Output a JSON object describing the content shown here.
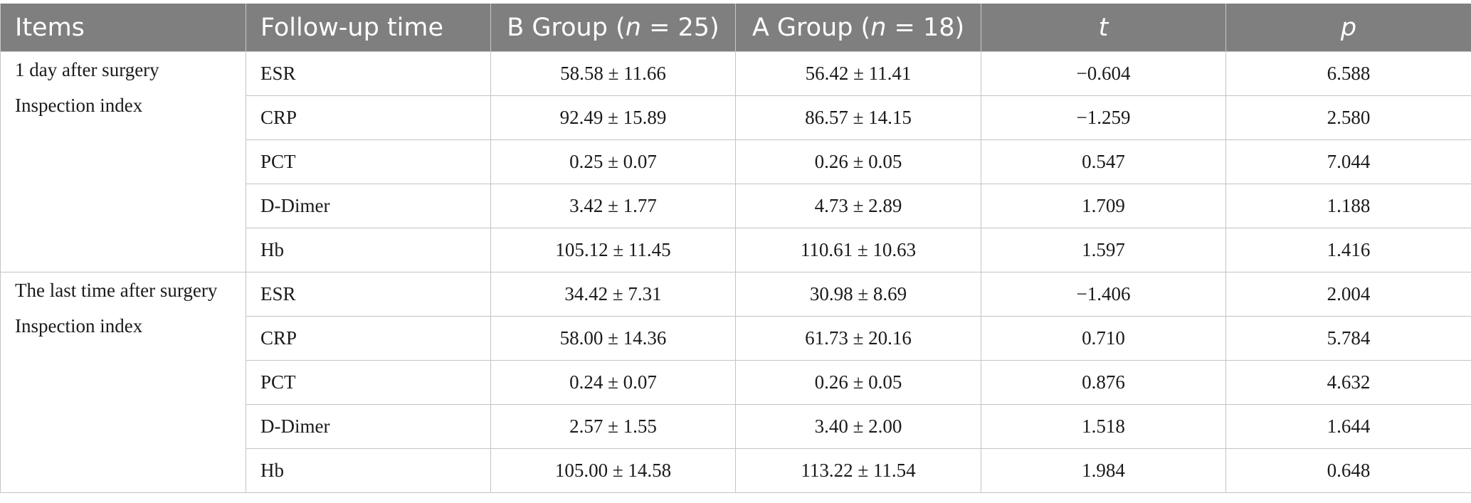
{
  "table": {
    "headers": {
      "items": "Items",
      "followup": "Follow-up time",
      "group_b_prefix": "B Group (",
      "group_b_n": "n",
      "group_b_suffix": " = 25)",
      "group_a_prefix": "A Group (",
      "group_a_n": "n",
      "group_a_suffix": " = 18)",
      "t": "t",
      "p": "p"
    },
    "sections": [
      {
        "label_line1": "1 day after surgery",
        "label_line2": "Inspection index",
        "rows": [
          {
            "name": "ESR",
            "b": "58.58 ± 11.66",
            "a": "56.42 ± 11.41",
            "t": "−0.604",
            "p": "6.588"
          },
          {
            "name": "CRP",
            "b": "92.49 ± 15.89",
            "a": "86.57 ± 14.15",
            "t": "−1.259",
            "p": "2.580"
          },
          {
            "name": "PCT",
            "b": "0.25 ± 0.07",
            "a": "0.26 ± 0.05",
            "t": "0.547",
            "p": "7.044"
          },
          {
            "name": "D-Dimer",
            "b": "3.42 ± 1.77",
            "a": "4.73 ± 2.89",
            "t": "1.709",
            "p": "1.188"
          },
          {
            "name": "Hb",
            "b": "105.12 ± 11.45",
            "a": "110.61 ± 10.63",
            "t": "1.597",
            "p": "1.416"
          }
        ]
      },
      {
        "label_line1": "The last time after surgery",
        "label_line2": "Inspection index",
        "rows": [
          {
            "name": "ESR",
            "b": "34.42 ± 7.31",
            "a": "30.98 ± 8.69",
            "t": "−1.406",
            "p": "2.004"
          },
          {
            "name": "CRP",
            "b": "58.00 ± 14.36",
            "a": "61.73 ± 20.16",
            "t": "0.710",
            "p": "5.784"
          },
          {
            "name": "PCT",
            "b": "0.24 ± 0.07",
            "a": "0.26 ± 0.05",
            "t": "0.876",
            "p": "4.632"
          },
          {
            "name": "D-Dimer",
            "b": "2.57 ± 1.55",
            "a": "3.40 ± 2.00",
            "t": "1.518",
            "p": "1.644"
          },
          {
            "name": "Hb",
            "b": "105.00 ± 14.58",
            "a": "113.22 ± 11.54",
            "t": "1.984",
            "p": "0.648"
          }
        ]
      }
    ]
  }
}
